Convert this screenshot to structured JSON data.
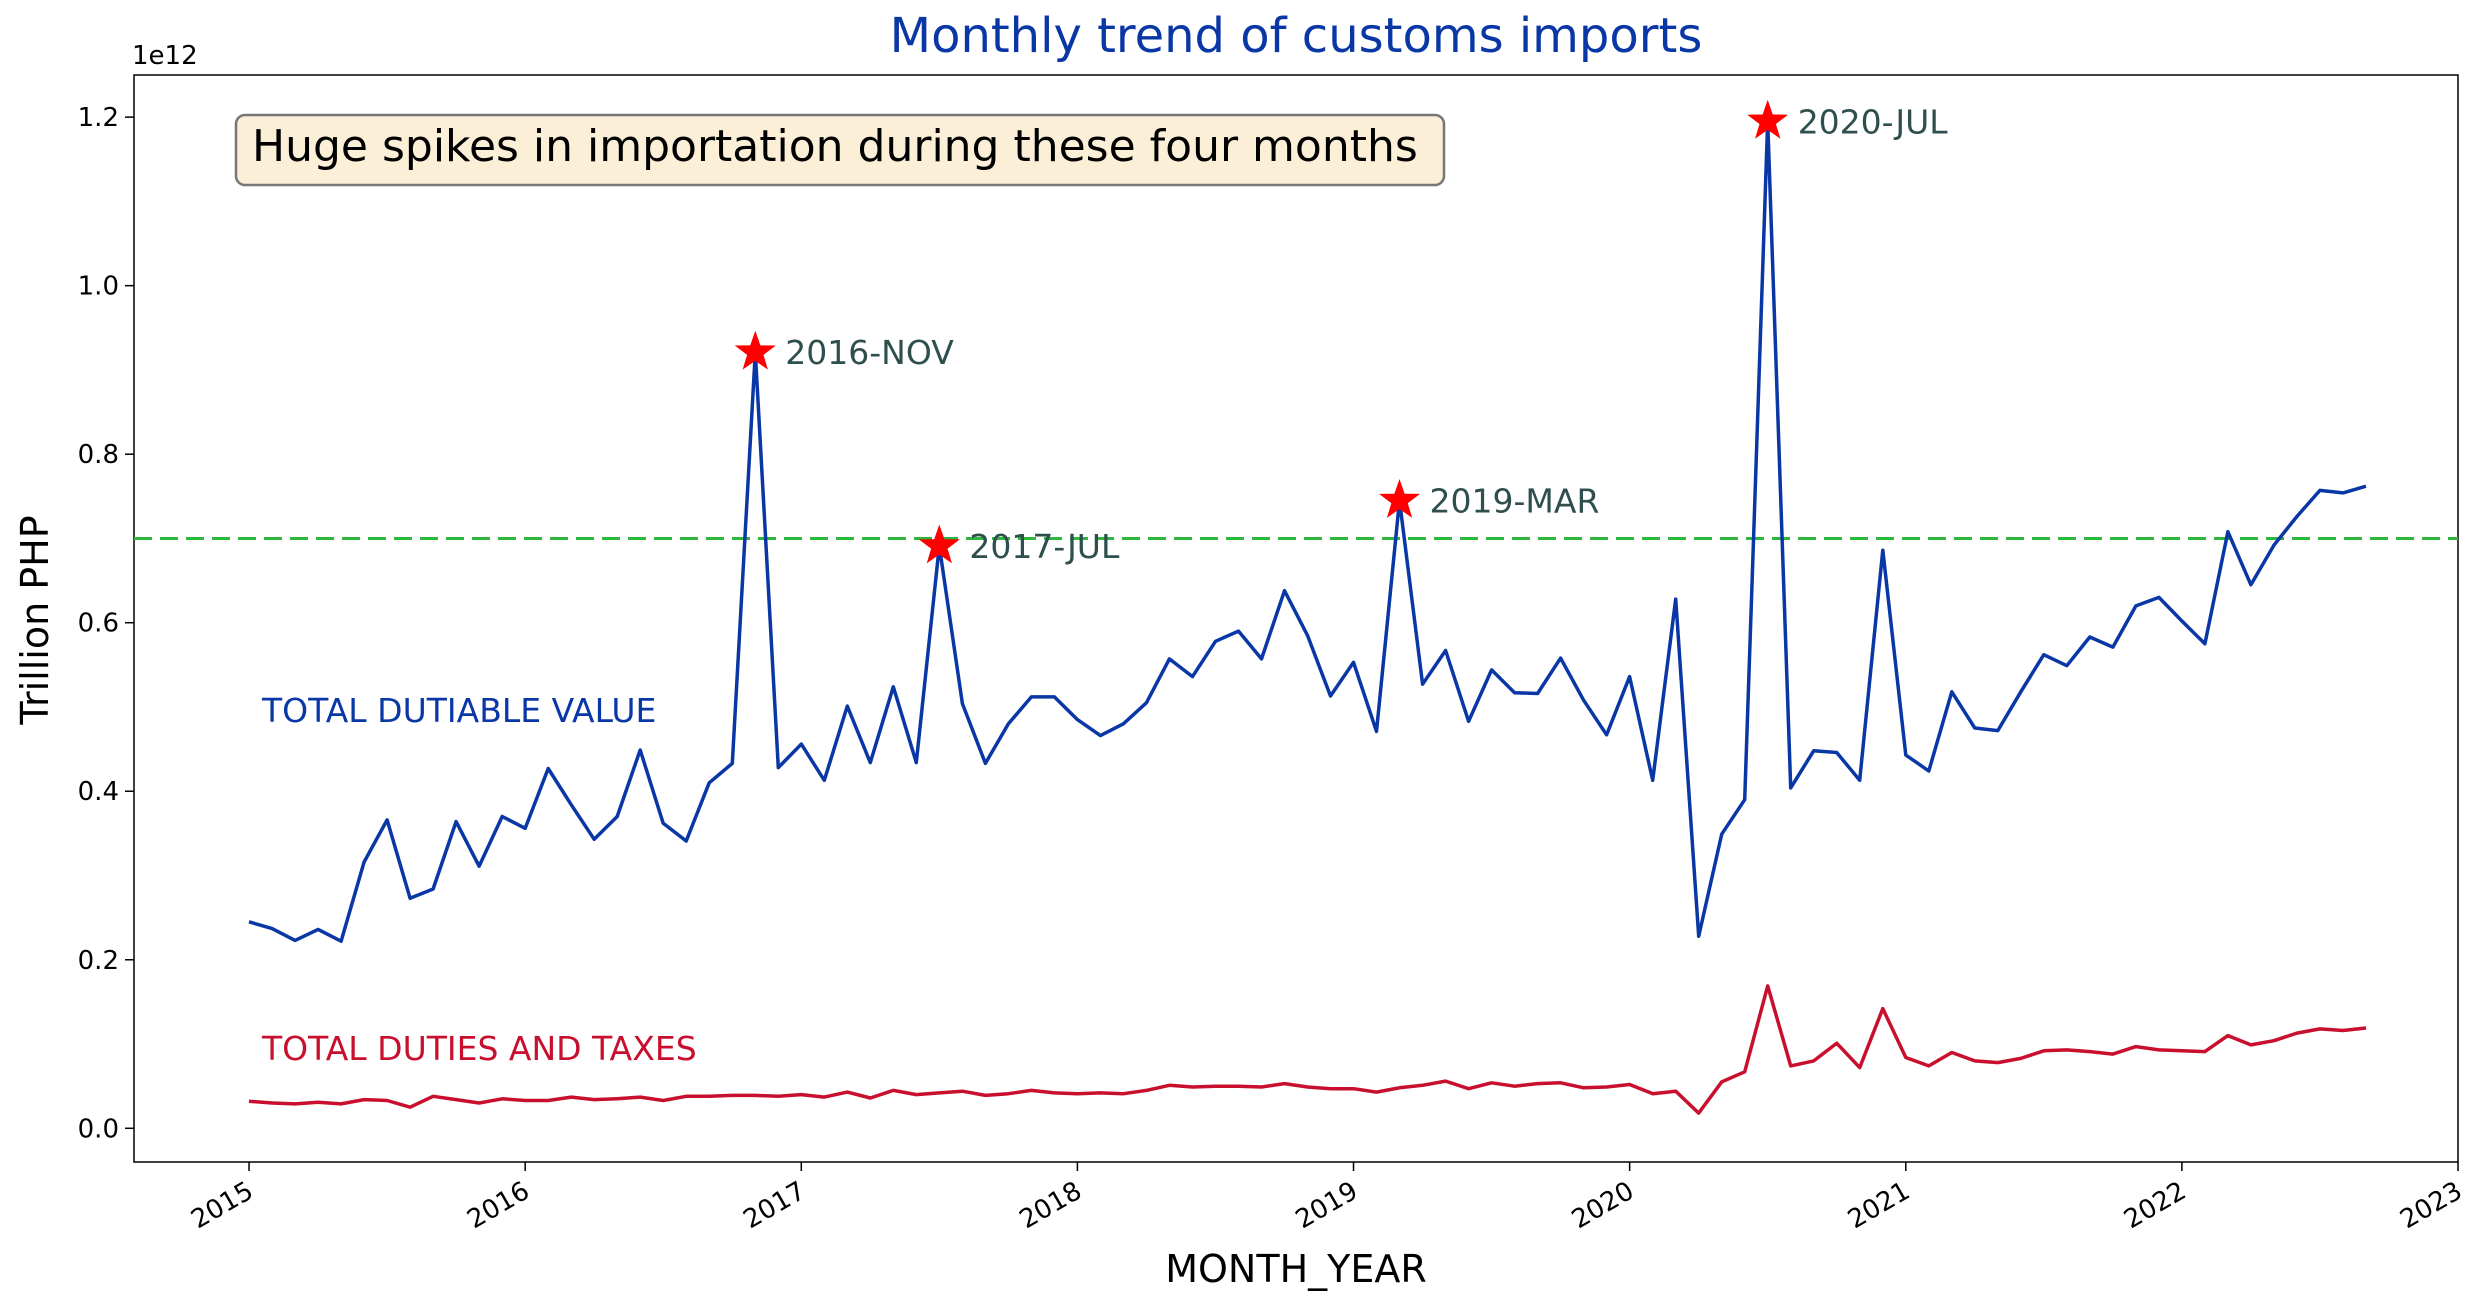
{
  "chart_data": {
    "type": "line",
    "title": "Monthly trend of customs imports",
    "xlabel": "MONTH_YEAR",
    "ylabel": "Trillion PHP",
    "y_offset_label": "1e12",
    "ylim": [
      -0.04,
      1.25
    ],
    "xlim": [
      "2014-08",
      "2023-01"
    ],
    "x_ticks": [
      "2015",
      "2016",
      "2017",
      "2018",
      "2019",
      "2020",
      "2021",
      "2022",
      "2023"
    ],
    "y_ticks": [
      "0.0",
      "0.2",
      "0.4",
      "0.6",
      "0.8",
      "1.0",
      "1.2"
    ],
    "grid": false,
    "reference_line": {
      "y": 0.7,
      "color": "#2db83d",
      "style": "dashed"
    },
    "annotation_box": "Huge spikes in importation during these four months",
    "x_start": "2015-01",
    "series": [
      {
        "name": "TOTAL DUTIABLE VALUE",
        "color": "#0a37a6",
        "values": [
          0.245,
          0.237,
          0.223,
          0.236,
          0.222,
          0.316,
          0.366,
          0.273,
          0.284,
          0.364,
          0.311,
          0.37,
          0.356,
          0.427,
          0.384,
          0.343,
          0.37,
          0.449,
          0.362,
          0.341,
          0.41,
          0.433,
          0.921,
          0.428,
          0.456,
          0.413,
          0.501,
          0.434,
          0.524,
          0.434,
          0.691,
          0.504,
          0.433,
          0.48,
          0.512,
          0.512,
          0.485,
          0.466,
          0.48,
          0.505,
          0.557,
          0.536,
          0.578,
          0.59,
          0.557,
          0.638,
          0.585,
          0.513,
          0.553,
          0.471,
          0.745,
          0.527,
          0.567,
          0.483,
          0.544,
          0.517,
          0.516,
          0.558,
          0.508,
          0.467,
          0.536,
          0.413,
          0.628,
          0.228,
          0.349,
          0.39,
          1.195,
          0.404,
          0.448,
          0.446,
          0.413,
          0.686,
          0.443,
          0.424,
          0.518,
          0.475,
          0.472,
          0.518,
          0.562,
          0.549,
          0.583,
          0.571,
          0.62,
          0.63,
          0.602,
          0.575,
          0.708,
          0.645,
          0.692,
          0.726,
          0.757,
          0.754,
          0.762
        ]
      },
      {
        "name": "TOTAL DUTIES AND TAXES",
        "color": "#c8102e",
        "values": [
          0.032,
          0.03,
          0.029,
          0.031,
          0.029,
          0.034,
          0.033,
          0.025,
          0.038,
          0.034,
          0.03,
          0.035,
          0.033,
          0.033,
          0.037,
          0.034,
          0.035,
          0.037,
          0.033,
          0.038,
          0.038,
          0.039,
          0.039,
          0.038,
          0.04,
          0.037,
          0.043,
          0.036,
          0.045,
          0.04,
          0.042,
          0.044,
          0.039,
          0.041,
          0.045,
          0.042,
          0.041,
          0.042,
          0.041,
          0.045,
          0.051,
          0.049,
          0.05,
          0.05,
          0.049,
          0.053,
          0.049,
          0.047,
          0.047,
          0.043,
          0.048,
          0.051,
          0.056,
          0.047,
          0.054,
          0.05,
          0.053,
          0.054,
          0.048,
          0.049,
          0.052,
          0.041,
          0.044,
          0.018,
          0.055,
          0.067,
          0.169,
          0.074,
          0.08,
          0.101,
          0.072,
          0.142,
          0.084,
          0.074,
          0.09,
          0.08,
          0.078,
          0.083,
          0.092,
          0.093,
          0.091,
          0.088,
          0.097,
          0.093,
          0.092,
          0.091,
          0.11,
          0.099,
          0.104,
          0.113,
          0.118,
          0.116,
          0.119
        ]
      }
    ],
    "spikes": [
      {
        "label": "2016-NOV",
        "month": "2016-11",
        "value": 0.921
      },
      {
        "label": "2017-JUL",
        "month": "2017-07",
        "value": 0.691
      },
      {
        "label": "2019-MAR",
        "month": "2019-03",
        "value": 0.745
      },
      {
        "label": "2020-JUL",
        "month": "2020-07",
        "value": 1.195
      }
    ],
    "colors": {
      "title": "#0a37a6",
      "spike_marker": "#ff0000",
      "spike_label": "#2f4f4f",
      "box_fill": "#fbefd8",
      "box_stroke": "#777777"
    }
  }
}
